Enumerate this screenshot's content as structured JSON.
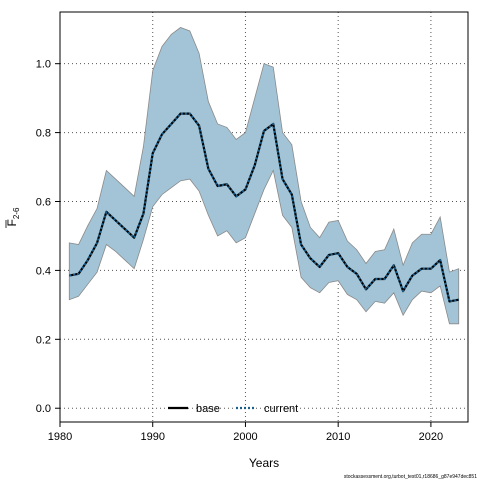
{
  "chart_data": {
    "type": "line",
    "title": "",
    "xlabel": "Years",
    "ylabel_main": "F",
    "ylabel_sub": "2-6",
    "xlim": [
      1980,
      2024
    ],
    "ylim": [
      -0.04,
      1.15
    ],
    "xticks": [
      1980,
      1990,
      2000,
      2010,
      2020
    ],
    "xtick_labels": [
      "1980",
      "1990",
      "2000",
      "2010",
      "2020"
    ],
    "yticks": [
      0.0,
      0.2,
      0.4,
      0.6,
      0.8,
      1.0
    ],
    "ytick_labels": [
      "0.0",
      "0.2",
      "0.4",
      "0.6",
      "0.8",
      "1.0"
    ],
    "grid": true,
    "legend_position": "bottom-center",
    "x": [
      1981,
      1982,
      1983,
      1984,
      1985,
      1986,
      1987,
      1988,
      1989,
      1990,
      1991,
      1992,
      1993,
      1994,
      1995,
      1996,
      1997,
      1998,
      1999,
      2000,
      2001,
      2002,
      2003,
      2004,
      2005,
      2006,
      2007,
      2008,
      2009,
      2010,
      2011,
      2012,
      2013,
      2014,
      2015,
      2016,
      2017,
      2018,
      2019,
      2020,
      2021,
      2022,
      2023
    ],
    "band": {
      "color": "#a2c4d6",
      "edge_color": "#8a8a8a",
      "upper": [
        0.48,
        0.475,
        0.53,
        0.58,
        0.69,
        0.665,
        0.64,
        0.615,
        0.76,
        0.98,
        1.05,
        1.085,
        1.105,
        1.095,
        1.03,
        0.89,
        0.825,
        0.815,
        0.78,
        0.8,
        0.9,
        1.0,
        0.99,
        0.8,
        0.765,
        0.6,
        0.525,
        0.495,
        0.54,
        0.545,
        0.485,
        0.46,
        0.42,
        0.455,
        0.46,
        0.52,
        0.415,
        0.48,
        0.505,
        0.505,
        0.555,
        0.395,
        0.405
      ],
      "lower": [
        0.315,
        0.325,
        0.36,
        0.395,
        0.475,
        0.455,
        0.43,
        0.405,
        0.49,
        0.585,
        0.62,
        0.64,
        0.66,
        0.665,
        0.63,
        0.56,
        0.5,
        0.515,
        0.48,
        0.495,
        0.565,
        0.635,
        0.69,
        0.56,
        0.525,
        0.38,
        0.35,
        0.335,
        0.365,
        0.37,
        0.33,
        0.315,
        0.28,
        0.31,
        0.305,
        0.335,
        0.27,
        0.315,
        0.34,
        0.335,
        0.355,
        0.245,
        0.245
      ]
    },
    "series": [
      {
        "name": "base",
        "color": "#000000",
        "style": "solid",
        "values": [
          0.385,
          0.39,
          0.43,
          0.48,
          0.57,
          0.545,
          0.52,
          0.495,
          0.565,
          0.74,
          0.795,
          0.825,
          0.855,
          0.855,
          0.82,
          0.695,
          0.645,
          0.65,
          0.615,
          0.635,
          0.705,
          0.805,
          0.825,
          0.665,
          0.62,
          0.475,
          0.435,
          0.41,
          0.445,
          0.45,
          0.41,
          0.39,
          0.345,
          0.375,
          0.375,
          0.415,
          0.34,
          0.385,
          0.405,
          0.405,
          0.43,
          0.31,
          0.315
        ]
      },
      {
        "name": "current",
        "color": "#1a5e8c",
        "style": "dotted",
        "values": [
          0.385,
          0.39,
          0.43,
          0.48,
          0.57,
          0.545,
          0.52,
          0.495,
          0.565,
          0.74,
          0.795,
          0.825,
          0.855,
          0.855,
          0.82,
          0.695,
          0.645,
          0.65,
          0.615,
          0.635,
          0.705,
          0.805,
          0.825,
          0.665,
          0.62,
          0.475,
          0.435,
          0.41,
          0.445,
          0.45,
          0.41,
          0.39,
          0.345,
          0.375,
          0.375,
          0.415,
          0.34,
          0.385,
          0.405,
          0.405,
          0.43,
          0.31,
          0.315
        ]
      }
    ]
  },
  "footer": "stockassessment.org,turbot_test01,r18686_g87e947dec851"
}
